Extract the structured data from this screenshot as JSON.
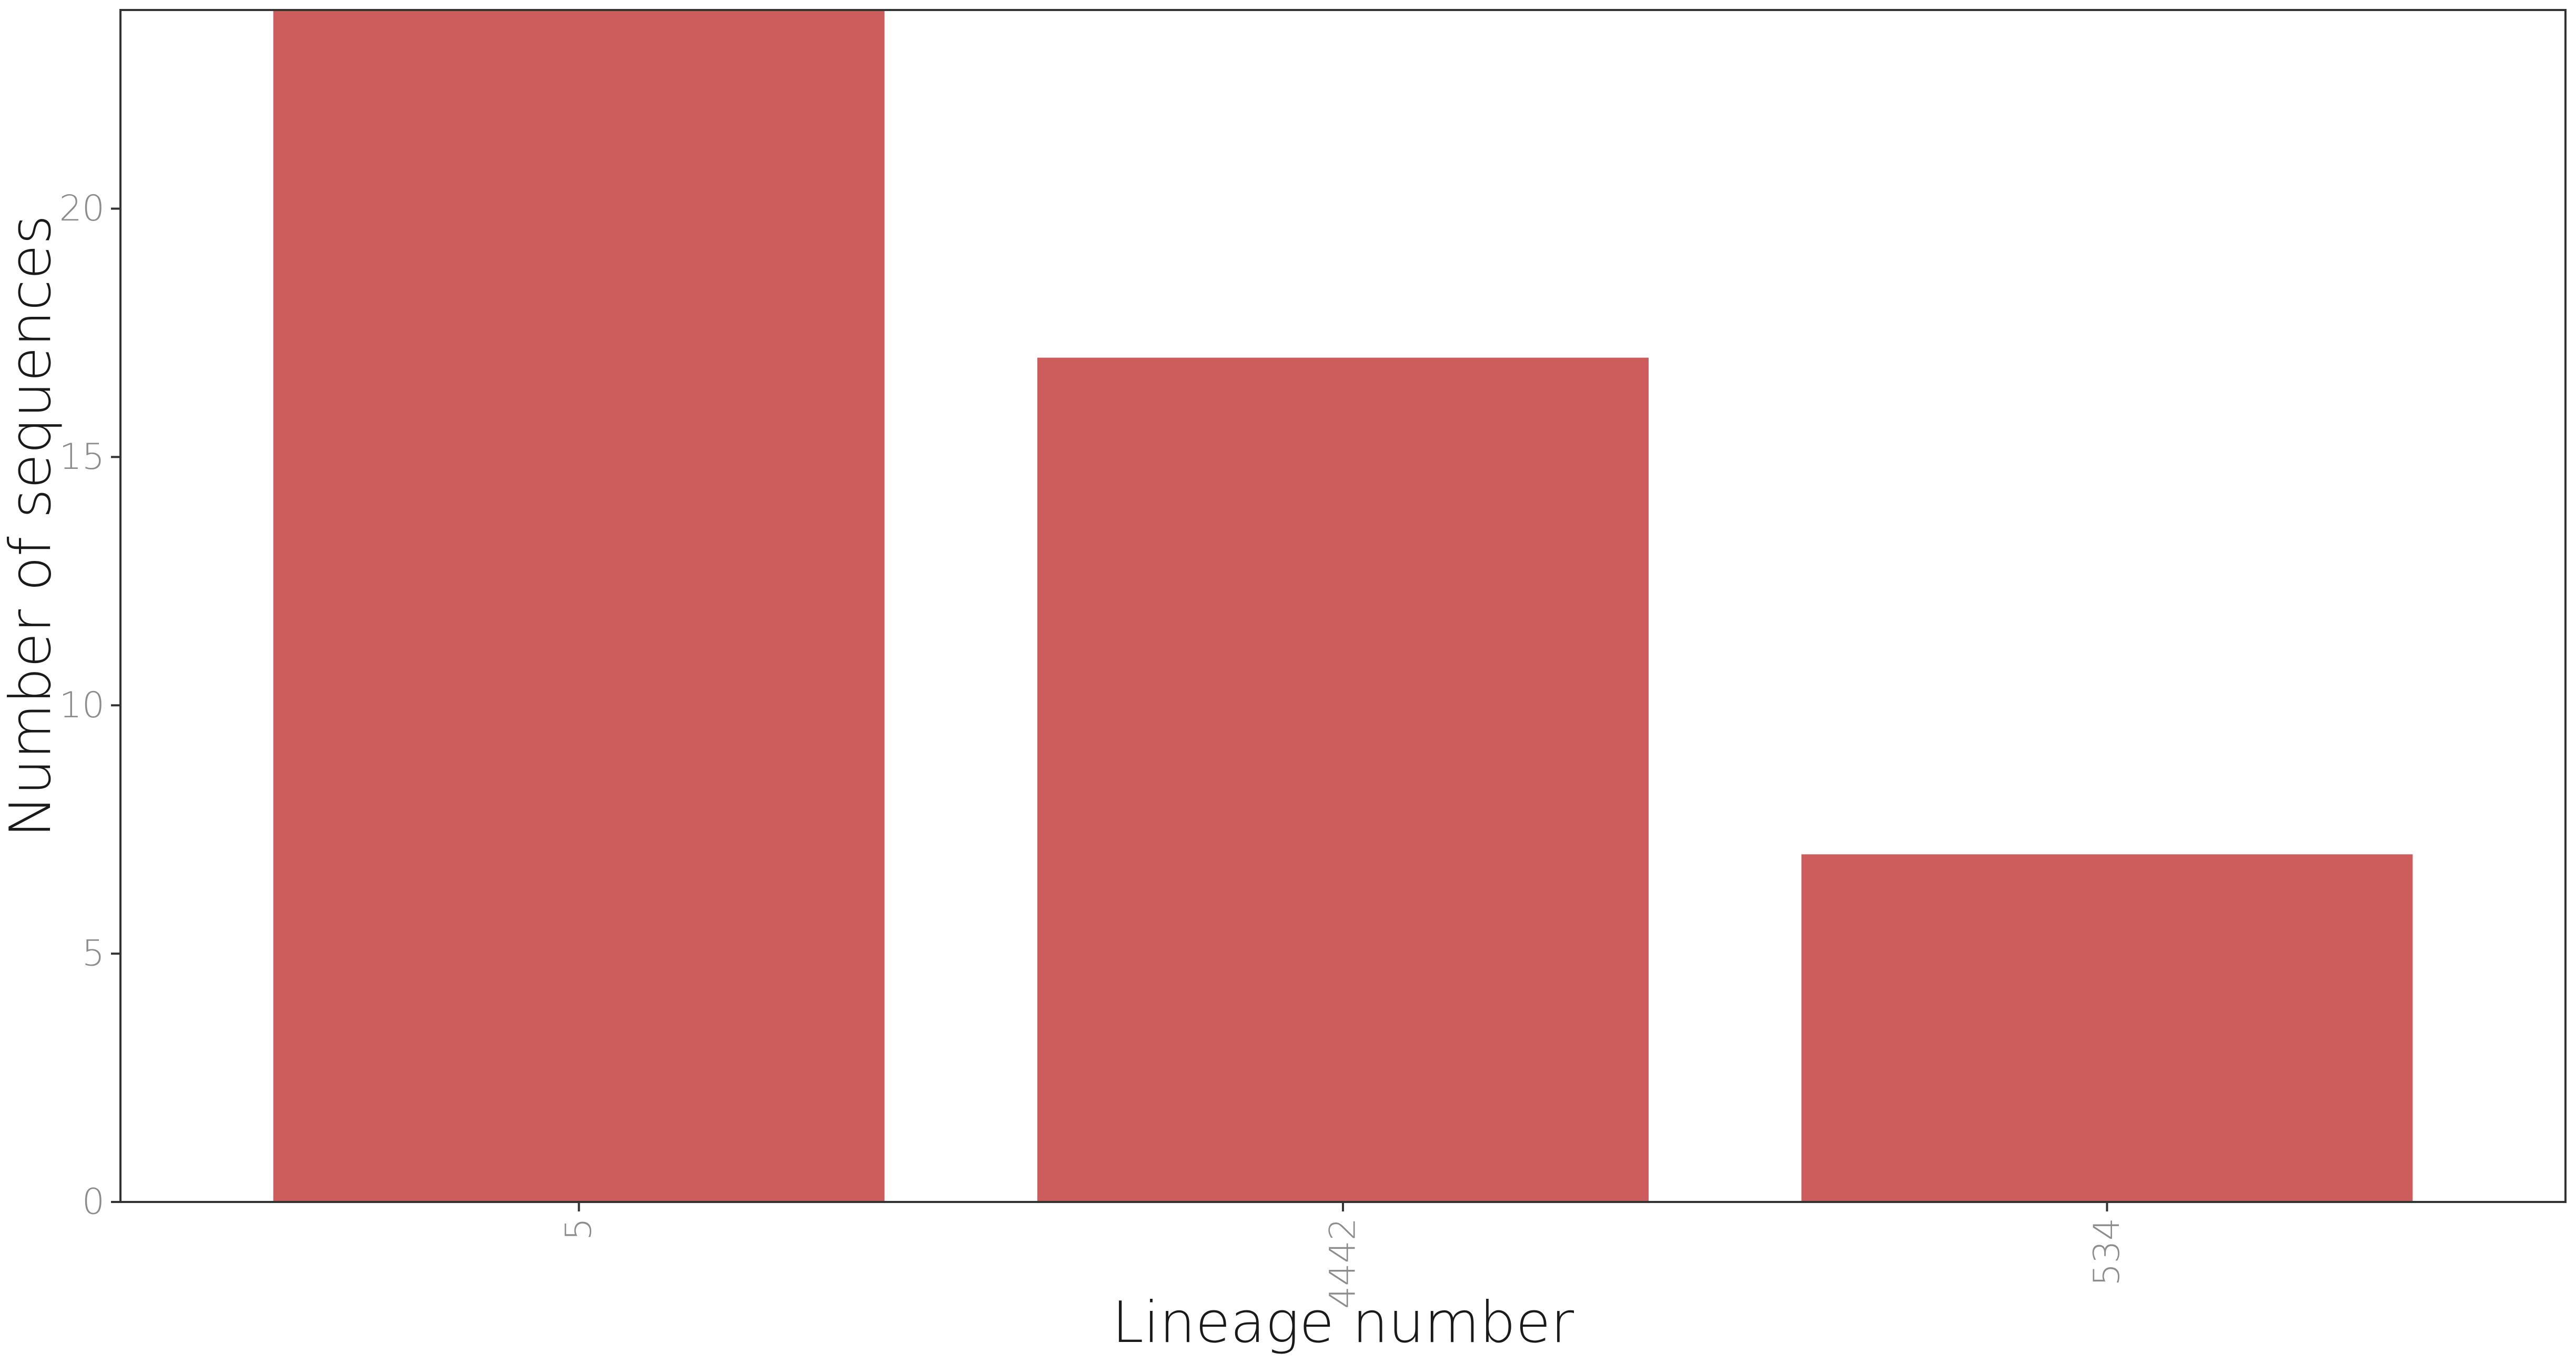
{
  "chart_data": {
    "type": "bar",
    "categories": [
      "5",
      "4442",
      "534"
    ],
    "values": [
      24,
      17,
      7
    ],
    "xlabel": "Lineage number",
    "ylabel": "Number of sequences",
    "ylim": [
      0,
      24
    ],
    "yticks": [
      0,
      5,
      10,
      15,
      20
    ],
    "grid": false,
    "bar_color": "#cd5c5c",
    "x_tick_rotation_deg": -90
  }
}
